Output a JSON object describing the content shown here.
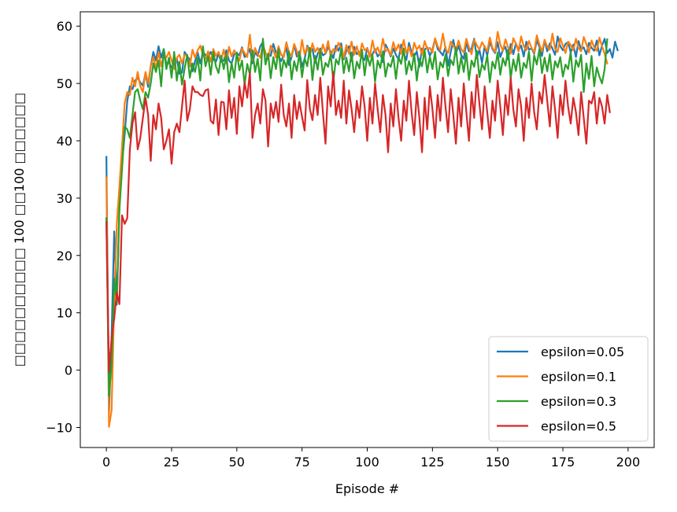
{
  "chart_data": {
    "type": "line",
    "xlabel": "Episode #",
    "ylabel": "□□□□□□□□□□ 100 □□100 □□□□□□",
    "xlim": [
      -10,
      210
    ],
    "ylim": [
      -13.5,
      62.5
    ],
    "xticks": [
      0,
      25,
      50,
      75,
      100,
      125,
      150,
      175,
      200
    ],
    "yticks": [
      -10,
      0,
      10,
      20,
      30,
      40,
      50,
      60
    ],
    "grid": false,
    "legend_position": "lower-right",
    "series": [
      {
        "name": "epsilon=0.05",
        "color": "#1f77b4",
        "values": [
          37.2,
          -7.5,
          6.1,
          24.2,
          11.4,
          28.5,
          36.0,
          41.0,
          46.9,
          49.5,
          49.0,
          50.5,
          51.0,
          50.2,
          49.6,
          51.8,
          49.4,
          53.0,
          55.5,
          54.0,
          56.5,
          54.5,
          56.0,
          53.3,
          53.7,
          52.8,
          53.2,
          54.4,
          51.7,
          51.9,
          55.5,
          54.7,
          54.2,
          52.1,
          53.9,
          55.4,
          53.5,
          55.4,
          55.0,
          54.6,
          55.5,
          54.2,
          53.8,
          55.2,
          53.8,
          54.0,
          55.8,
          54.0,
          53.5,
          55.1,
          55.3,
          54.9,
          56.3,
          54.6,
          55.1,
          56.0,
          53.5,
          55.4,
          54.8,
          56.5,
          57.2,
          53.5,
          55.2,
          54.8,
          56.9,
          55.4,
          54.8,
          53.9,
          55.0,
          56.2,
          53.2,
          54.6,
          56.8,
          54.7,
          55.6,
          52.9,
          54.3,
          56.6,
          55.8,
          56.0,
          53.6,
          55.2,
          56.1,
          54.9,
          55.2,
          56.3,
          55.6,
          54.4,
          56.6,
          55.7,
          57.0,
          54.2,
          55.7,
          56.5,
          53.9,
          56.4,
          55.1,
          55.5,
          54.5,
          54.1,
          56.2,
          54.8,
          55.1,
          56.0,
          54.7,
          55.3,
          53.7,
          56.8,
          55.9,
          54.7,
          56.1,
          55.0,
          54.2,
          56.8,
          55.2,
          54.1,
          57.1,
          55.4,
          54.7,
          55.6,
          52.9,
          56.1,
          55.9,
          56.3,
          54.8,
          55.9,
          57.8,
          56.0,
          55.5,
          54.9,
          56.4,
          53.1,
          55.5,
          57.6,
          55.2,
          56.6,
          55.0,
          54.3,
          57.1,
          55.6,
          56.1,
          57.8,
          54.4,
          55.9,
          53.6,
          56.5,
          54.9,
          57.3,
          56.0,
          55.3,
          57.2,
          54.6,
          55.8,
          56.4,
          54.2,
          56.9,
          55.1,
          57.0,
          55.8,
          56.6,
          54.7,
          57.3,
          55.9,
          56.1,
          55.2,
          57.5,
          56.4,
          54.8,
          57.6,
          55.6,
          57.0,
          56.1,
          55.0,
          58.2,
          56.5,
          55.8,
          56.9,
          57.2,
          55.4,
          56.8,
          54.6,
          57.4,
          55.9,
          56.3,
          55.1,
          57.1,
          56.2,
          55.7,
          57.5,
          54.9,
          56.6,
          57.8,
          55.3,
          56.0,
          54.5,
          57.3,
          55.8
        ]
      },
      {
        "name": "epsilon=0.1",
        "color": "#ff7f0e",
        "values": [
          33.6,
          -9.9,
          -7.0,
          12.0,
          25.5,
          32.0,
          39.0,
          46.5,
          48.5,
          48.0,
          51.0,
          49.5,
          52.0,
          49.5,
          48.5,
          52.0,
          50.0,
          53.0,
          54.6,
          52.5,
          55.5,
          53.0,
          55.0,
          54.5,
          55.5,
          54.0,
          52.5,
          54.5,
          55.0,
          53.5,
          55.0,
          54.8,
          53.0,
          55.9,
          54.5,
          55.8,
          56.6,
          55.0,
          54.3,
          55.6,
          53.8,
          56.0,
          54.8,
          55.5,
          54.2,
          55.9,
          53.5,
          56.4,
          54.7,
          55.8,
          54.9,
          54.0,
          56.1,
          55.3,
          54.6,
          58.5,
          54.0,
          56.2,
          55.1,
          54.5,
          56.8,
          55.4,
          54.2,
          56.6,
          55.8,
          54.5,
          56.5,
          55.0,
          54.6,
          57.2,
          55.4,
          54.8,
          56.9,
          55.7,
          54.2,
          57.6,
          55.1,
          56.4,
          54.8,
          57.0,
          55.5,
          56.2,
          54.9,
          56.8,
          55.3,
          57.4,
          54.7,
          56.0,
          55.6,
          57.1,
          56.2,
          54.5,
          56.7,
          55.2,
          57.3,
          55.0,
          56.5,
          54.8,
          57.0,
          55.8,
          56.1,
          54.6,
          57.5,
          55.4,
          56.3,
          55.0,
          57.8,
          55.6,
          56.0,
          54.9,
          57.2,
          55.7,
          56.8,
          55.2,
          57.6,
          55.3,
          56.4,
          54.7,
          57.1,
          55.9,
          56.6,
          55.0,
          57.4,
          56.0,
          56.2,
          55.4,
          57.9,
          56.5,
          55.8,
          58.7,
          56.1,
          55.3,
          57.3,
          56.6,
          55.7,
          57.5,
          56.0,
          55.4,
          57.8,
          56.3,
          55.1,
          57.6,
          56.7,
          55.9,
          57.2,
          56.4,
          55.6,
          58.0,
          56.2,
          55.5,
          59.0,
          56.8,
          55.7,
          57.7,
          56.3,
          55.2,
          57.9,
          56.9,
          55.6,
          58.2,
          56.5,
          55.8,
          57.4,
          56.2,
          55.4,
          58.4,
          56.8,
          55.6,
          57.6,
          56.4,
          55.9,
          58.7,
          56.1,
          55.5,
          57.9,
          56.6,
          55.3,
          57.3,
          56.7,
          55.8,
          57.8,
          56.2,
          55.6,
          58.1,
          56.9,
          55.4,
          57.5,
          56.3,
          55.7,
          58.0,
          56.5,
          55.2,
          53.5
        ]
      },
      {
        "name": "epsilon=0.3",
        "color": "#2ca02c",
        "values": [
          26.5,
          -4.5,
          1.0,
          16.0,
          12.0,
          28.0,
          35.0,
          42.5,
          42.0,
          40.5,
          44.5,
          48.5,
          49.0,
          47.0,
          45.5,
          48.5,
          47.5,
          50.0,
          53.5,
          52.0,
          54.0,
          49.5,
          56.0,
          52.5,
          54.5,
          51.0,
          55.5,
          50.5,
          53.8,
          49.8,
          52.6,
          55.0,
          51.0,
          53.5,
          52.0,
          54.5,
          50.5,
          56.5,
          53.0,
          54.8,
          51.5,
          55.5,
          53.0,
          51.8,
          54.8,
          52.5,
          55.0,
          50.2,
          53.6,
          51.0,
          55.4,
          52.3,
          54.0,
          49.8,
          53.4,
          51.6,
          55.8,
          52.0,
          54.3,
          50.5,
          57.8,
          53.3,
          55.2,
          50.9,
          54.6,
          52.5,
          56.0,
          51.3,
          54.1,
          52.8,
          55.6,
          50.7,
          53.9,
          52.2,
          55.3,
          51.1,
          54.4,
          53.0,
          56.2,
          50.6,
          54.8,
          52.4,
          55.7,
          51.5,
          53.6,
          52.9,
          55.1,
          50.4,
          54.2,
          53.3,
          56.0,
          51.8,
          54.5,
          52.1,
          55.4,
          50.9,
          53.8,
          52.6,
          55.9,
          51.4,
          54.9,
          53.1,
          55.0,
          50.3,
          54.0,
          52.7,
          55.6,
          51.2,
          53.5,
          52.9,
          54.8,
          50.8,
          54.6,
          53.4,
          56.1,
          51.6,
          53.9,
          52.3,
          55.2,
          50.5,
          54.3,
          53.0,
          55.8,
          51.9,
          54.7,
          52.5,
          55.5,
          50.7,
          53.7,
          52.8,
          55.0,
          51.3,
          54.1,
          53.2,
          56.3,
          51.7,
          54.6,
          52.0,
          55.3,
          50.6,
          54.0,
          52.9,
          55.7,
          51.1,
          53.4,
          52.4,
          54.9,
          50.2,
          53.8,
          52.6,
          55.4,
          51.5,
          54.4,
          53.1,
          55.9,
          50.9,
          54.2,
          52.2,
          55.2,
          51.0,
          53.6,
          52.7,
          55.6,
          50.4,
          54.9,
          53.3,
          56.0,
          51.8,
          54.5,
          52.1,
          55.1,
          50.7,
          53.9,
          52.8,
          54.6,
          51.2,
          53.3,
          52.5,
          55.5,
          50.3,
          54.1,
          52.9,
          55.0,
          48.5,
          53.5,
          50.8,
          54.8,
          49.5,
          52.8,
          51.2,
          50.0,
          52.5,
          57.7
        ]
      },
      {
        "name": "epsilon=0.5",
        "color": "#d62728",
        "values": [
          25.8,
          -0.3,
          5.5,
          9.0,
          13.5,
          11.5,
          27.0,
          25.5,
          26.5,
          38.5,
          43.0,
          45.0,
          38.5,
          40.5,
          44.0,
          47.5,
          44.5,
          36.5,
          44.5,
          42.0,
          46.5,
          44.0,
          38.5,
          40.0,
          42.0,
          36.0,
          41.5,
          43.0,
          41.5,
          46.0,
          50.5,
          43.5,
          45.5,
          49.5,
          48.5,
          48.5,
          48.0,
          47.8,
          48.8,
          49.0,
          43.5,
          43.0,
          47.2,
          41.0,
          46.8,
          46.7,
          42.0,
          48.8,
          44.0,
          47.5,
          41.2,
          49.5,
          46.0,
          50.2,
          47.5,
          52.0,
          40.5,
          44.5,
          46.5,
          43.0,
          49.0,
          47.0,
          39.0,
          46.5,
          44.0,
          46.8,
          43.3,
          49.8,
          44.5,
          42.5,
          46.5,
          40.5,
          48.0,
          43.8,
          46.8,
          44.2,
          41.8,
          50.6,
          45.6,
          43.6,
          48.0,
          44.5,
          51.0,
          45.0,
          39.5,
          49.5,
          46.0,
          52.0,
          44.5,
          47.0,
          44.0,
          50.5,
          43.0,
          48.8,
          45.5,
          41.5,
          47.0,
          44.0,
          49.5,
          46.0,
          40.0,
          47.5,
          43.0,
          50.0,
          45.5,
          41.5,
          48.0,
          44.5,
          38.0,
          46.5,
          42.5,
          49.0,
          44.0,
          40.0,
          47.0,
          43.5,
          50.5,
          45.0,
          41.0,
          48.5,
          44.0,
          38.0,
          47.5,
          42.0,
          49.5,
          45.5,
          40.5,
          48.0,
          43.5,
          51.0,
          46.0,
          41.5,
          49.0,
          44.5,
          39.5,
          47.5,
          42.5,
          50.0,
          45.0,
          40.0,
          48.5,
          44.0,
          51.5,
          46.5,
          42.0,
          49.5,
          45.0,
          40.5,
          47.0,
          43.5,
          50.5,
          46.0,
          41.0,
          48.0,
          44.5,
          51.0,
          45.5,
          42.5,
          49.0,
          46.0,
          40.0,
          47.5,
          44.0,
          50.0,
          45.0,
          42.0,
          48.5,
          46.5,
          51.5,
          47.0,
          42.5,
          49.5,
          45.5,
          40.5,
          48.0,
          44.5,
          50.5,
          46.0,
          43.0,
          47.5,
          45.0,
          41.0,
          48.5,
          44.0,
          39.5,
          47.0,
          46.5,
          48.5,
          43.0,
          47.5,
          46.0,
          43.0,
          48.0,
          45.0
        ]
      }
    ]
  }
}
